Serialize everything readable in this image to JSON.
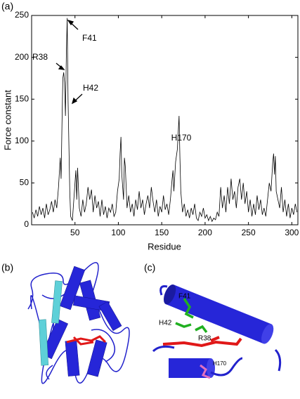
{
  "panels": {
    "a": "(a)",
    "b": "(b)",
    "c": "(c)",
    "c_labels": [
      "F41",
      "H42",
      "R38",
      "H170"
    ]
  },
  "chart_data": {
    "type": "line",
    "xlabel": "Residue",
    "ylabel": "Force constant",
    "color": "#000000",
    "annotations": [
      "F41",
      "R38",
      "H42",
      "H170"
    ],
    "xlim": [
      0,
      307
    ],
    "ylim": [
      0,
      250
    ],
    "xticks": [
      50,
      100,
      150,
      200,
      250,
      300
    ],
    "yticks": [
      0,
      50,
      100,
      150,
      200,
      250
    ],
    "x": [
      1,
      3,
      5,
      7,
      9,
      11,
      13,
      15,
      17,
      19,
      21,
      23,
      25,
      27,
      29,
      31,
      33,
      34,
      35,
      36,
      37,
      38,
      39,
      40,
      41,
      42,
      43,
      44,
      45,
      47,
      49,
      51,
      52,
      53,
      55,
      57,
      59,
      61,
      63,
      65,
      67,
      69,
      71,
      73,
      75,
      77,
      79,
      81,
      83,
      85,
      87,
      89,
      91,
      93,
      95,
      97,
      99,
      101,
      102,
      103,
      104,
      106,
      107,
      108,
      110,
      112,
      114,
      116,
      118,
      120,
      122,
      124,
      126,
      128,
      130,
      132,
      134,
      136,
      138,
      140,
      142,
      144,
      146,
      148,
      150,
      152,
      154,
      156,
      158,
      160,
      162,
      163,
      164,
      166,
      168,
      170,
      171,
      172,
      174,
      176,
      178,
      180,
      182,
      184,
      186,
      188,
      190,
      192,
      194,
      196,
      198,
      200,
      202,
      204,
      206,
      208,
      210,
      212,
      214,
      216,
      218,
      220,
      222,
      224,
      226,
      228,
      230,
      232,
      234,
      236,
      238,
      240,
      242,
      244,
      246,
      248,
      250,
      252,
      254,
      256,
      258,
      260,
      262,
      264,
      266,
      268,
      270,
      272,
      274,
      276,
      278,
      279,
      280,
      281,
      282,
      284,
      286,
      288,
      290,
      292,
      294,
      296,
      298,
      300,
      302,
      304,
      306
    ],
    "values": [
      15,
      8,
      18,
      10,
      22,
      12,
      20,
      8,
      25,
      12,
      18,
      28,
      15,
      30,
      20,
      45,
      80,
      55,
      120,
      175,
      182,
      170,
      130,
      200,
      247,
      150,
      95,
      40,
      10,
      5,
      35,
      65,
      30,
      68,
      20,
      10,
      30,
      15,
      25,
      45,
      30,
      42,
      15,
      35,
      20,
      28,
      10,
      30,
      12,
      22,
      8,
      20,
      15,
      25,
      10,
      15,
      40,
      55,
      85,
      105,
      60,
      30,
      80,
      70,
      20,
      35,
      15,
      25,
      10,
      30,
      18,
      40,
      20,
      30,
      12,
      25,
      35,
      20,
      45,
      28,
      15,
      30,
      10,
      22,
      15,
      35,
      18,
      25,
      12,
      30,
      55,
      65,
      40,
      75,
      90,
      130,
      80,
      40,
      15,
      25,
      10,
      18,
      8,
      20,
      12,
      25,
      8,
      5,
      15,
      10,
      20,
      8,
      12,
      5,
      10,
      4,
      8,
      6,
      15,
      10,
      45,
      20,
      35,
      15,
      45,
      25,
      55,
      30,
      40,
      20,
      45,
      55,
      30,
      50,
      25,
      40,
      15,
      30,
      10,
      25,
      12,
      35,
      18,
      30,
      12,
      20,
      10,
      30,
      50,
      40,
      75,
      85,
      60,
      82,
      40,
      30,
      20,
      45,
      15,
      30,
      10,
      25,
      8,
      20,
      12,
      25,
      15
    ]
  }
}
